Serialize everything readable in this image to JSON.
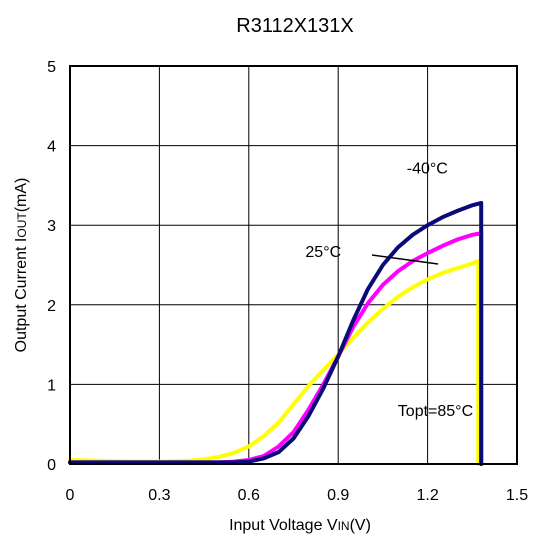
{
  "chart_data": {
    "type": "line",
    "title": "R3112X131X",
    "xlabel": "Input Voltage VIN(V)",
    "xlabel_main": "Input Voltage V",
    "xlabel_sub": "IN",
    "xlabel_tail": "(V)",
    "ylabel": "Output Current IOUT(mA)",
    "ylabel_main": "Output Current I",
    "ylabel_sub": "OUT",
    "ylabel_tail": "(mA)",
    "xlim": [
      0,
      1.5
    ],
    "ylim": [
      0,
      5
    ],
    "x_ticks": [
      "0",
      "0.3",
      "0.6",
      "0.9",
      "1.2",
      "1.5"
    ],
    "y_ticks": [
      "0",
      "1",
      "2",
      "3",
      "4",
      "5"
    ],
    "grid": true,
    "series": [
      {
        "name": "-40°C",
        "color": "#0a0a78",
        "x": [
          0,
          0.1,
          0.2,
          0.3,
          0.4,
          0.5,
          0.55,
          0.6,
          0.65,
          0.7,
          0.75,
          0.8,
          0.85,
          0.9,
          0.95,
          1.0,
          1.05,
          1.1,
          1.15,
          1.2,
          1.25,
          1.3,
          1.35,
          1.38,
          1.38
        ],
        "y": [
          0.02,
          0.02,
          0.02,
          0.02,
          0.02,
          0.02,
          0.02,
          0.03,
          0.07,
          0.15,
          0.32,
          0.6,
          0.95,
          1.35,
          1.8,
          2.2,
          2.5,
          2.72,
          2.88,
          3.0,
          3.1,
          3.18,
          3.25,
          3.28,
          0.0
        ]
      },
      {
        "name": "25°C",
        "color": "#ff00ff",
        "x": [
          0,
          0.1,
          0.2,
          0.3,
          0.4,
          0.5,
          0.55,
          0.6,
          0.65,
          0.7,
          0.75,
          0.8,
          0.85,
          0.9,
          0.95,
          1.0,
          1.05,
          1.1,
          1.15,
          1.2,
          1.25,
          1.3,
          1.35,
          1.38,
          1.38
        ],
        "y": [
          0.02,
          0.02,
          0.02,
          0.02,
          0.02,
          0.02,
          0.03,
          0.05,
          0.1,
          0.22,
          0.4,
          0.68,
          1.0,
          1.35,
          1.72,
          2.02,
          2.25,
          2.42,
          2.55,
          2.65,
          2.74,
          2.82,
          2.88,
          2.9,
          0.0
        ]
      },
      {
        "name": "Topt=85°C",
        "color": "#ffff00",
        "x": [
          0,
          0.1,
          0.2,
          0.3,
          0.4,
          0.45,
          0.5,
          0.55,
          0.6,
          0.65,
          0.7,
          0.75,
          0.8,
          0.85,
          0.9,
          0.95,
          1.0,
          1.05,
          1.1,
          1.15,
          1.2,
          1.25,
          1.3,
          1.35,
          1.37,
          1.37
        ],
        "y": [
          0.05,
          0.04,
          0.03,
          0.03,
          0.04,
          0.06,
          0.09,
          0.14,
          0.22,
          0.35,
          0.52,
          0.75,
          0.98,
          1.18,
          1.38,
          1.58,
          1.78,
          1.95,
          2.1,
          2.22,
          2.32,
          2.4,
          2.46,
          2.52,
          2.55,
          0.0
        ]
      }
    ],
    "annotations": [
      {
        "text": "-40°C",
        "x": 1.13,
        "y": 3.65
      },
      {
        "text": "25°C",
        "x": 0.79,
        "y": 2.6
      },
      {
        "text": "Topt=85°C",
        "x": 1.1,
        "y": 0.6
      }
    ]
  }
}
